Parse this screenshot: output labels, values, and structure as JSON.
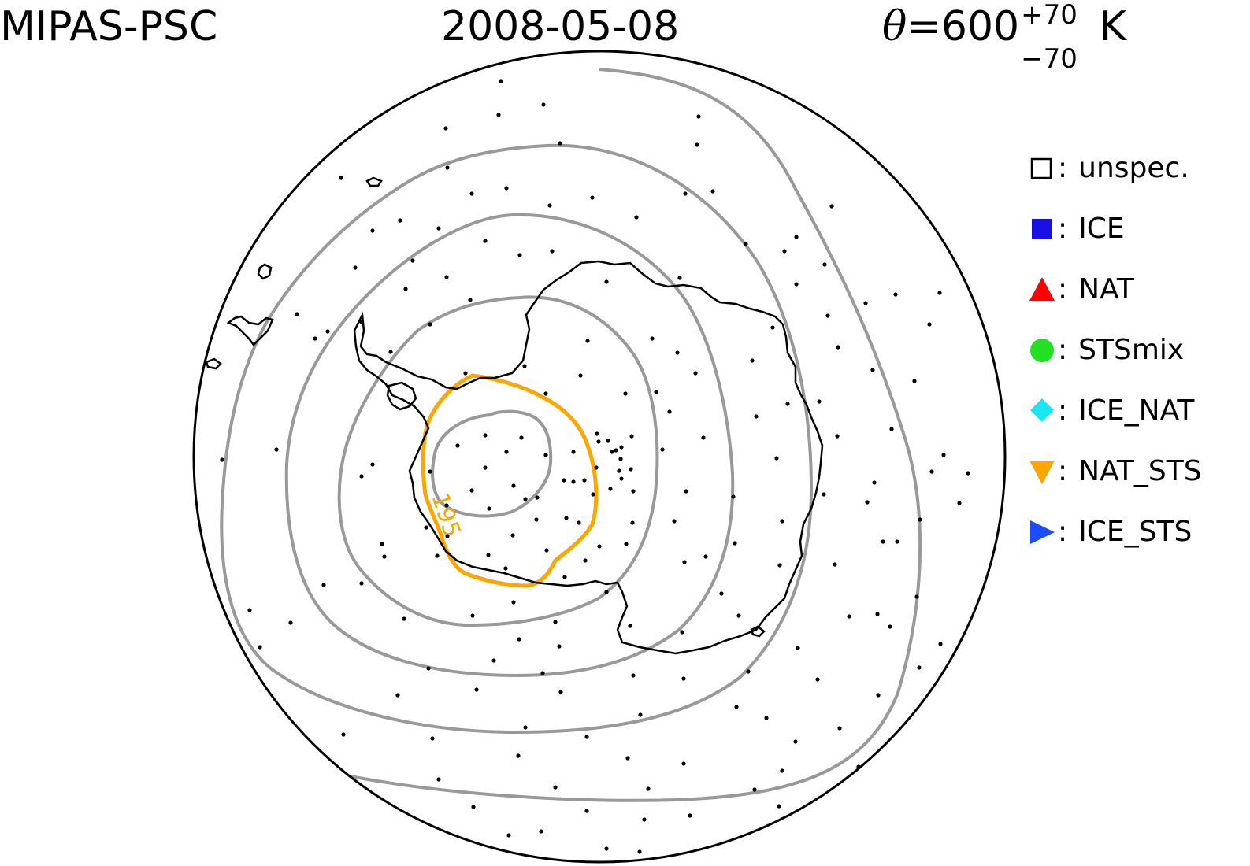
{
  "header": {
    "instrument": "MIPAS-PSC",
    "date": "2008-05-08",
    "theta_symbol": "θ",
    "theta_value": "=600",
    "theta_plus": "+70",
    "theta_minus": "−70",
    "theta_unit": "K"
  },
  "contour_label": "195",
  "legend": [
    {
      "label": "unspec.",
      "marker": "open-square",
      "color": "#000000"
    },
    {
      "label": "ICE",
      "marker": "filled-square",
      "color": "#1a10e6"
    },
    {
      "label": "NAT",
      "marker": "triangle-up",
      "color": "#ff0000"
    },
    {
      "label": "STSmix",
      "marker": "circle",
      "color": "#22e022"
    },
    {
      "label": "ICE_NAT",
      "marker": "diamond",
      "color": "#19e6f0"
    },
    {
      "label": "NAT_STS",
      "marker": "triangle-down",
      "color": "#ffa500"
    },
    {
      "label": "ICE_STS",
      "marker": "triangle-right",
      "color": "#1a4cff"
    }
  ],
  "colors": {
    "contour_gray": "#999999",
    "contour_orange": "#ffa500",
    "coastline": "#000000",
    "point": "#000000"
  }
}
